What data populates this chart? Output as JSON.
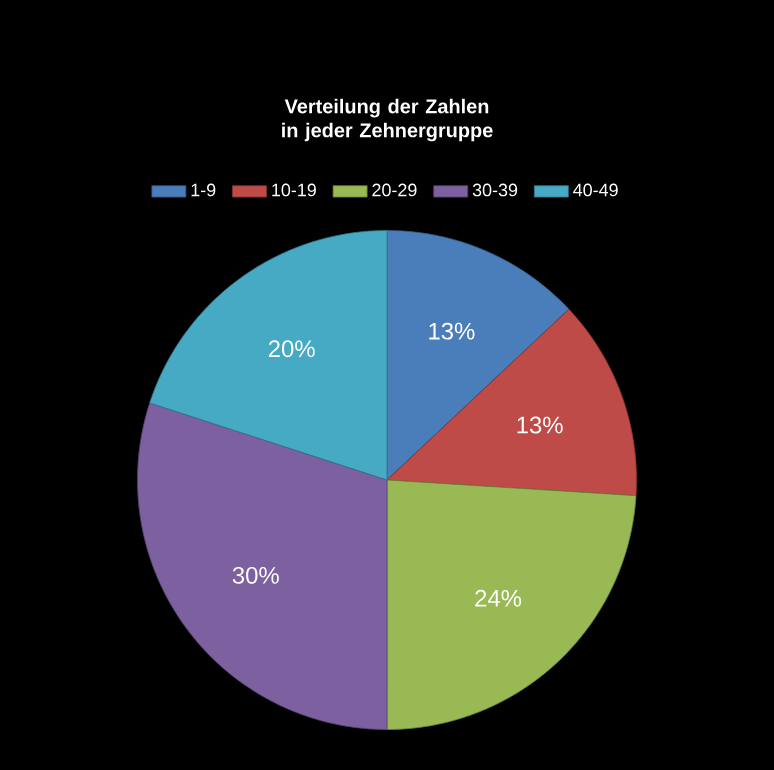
{
  "chart_data": {
    "type": "pie",
    "title": "Verteilung der Zahlen  in jeder Zehnergruppe",
    "categories": [
      "1-9",
      "10-19",
      "20-29",
      "30-39",
      "40-49"
    ],
    "values": [
      13,
      13,
      24,
      30,
      20
    ],
    "value_labels": [
      "13%",
      "13%",
      "24%",
      "30%",
      "20%"
    ],
    "colors": [
      "#4a7ebb",
      "#be4b48",
      "#98b954",
      "#7d60a0",
      "#46aac5"
    ],
    "legend": "top"
  }
}
